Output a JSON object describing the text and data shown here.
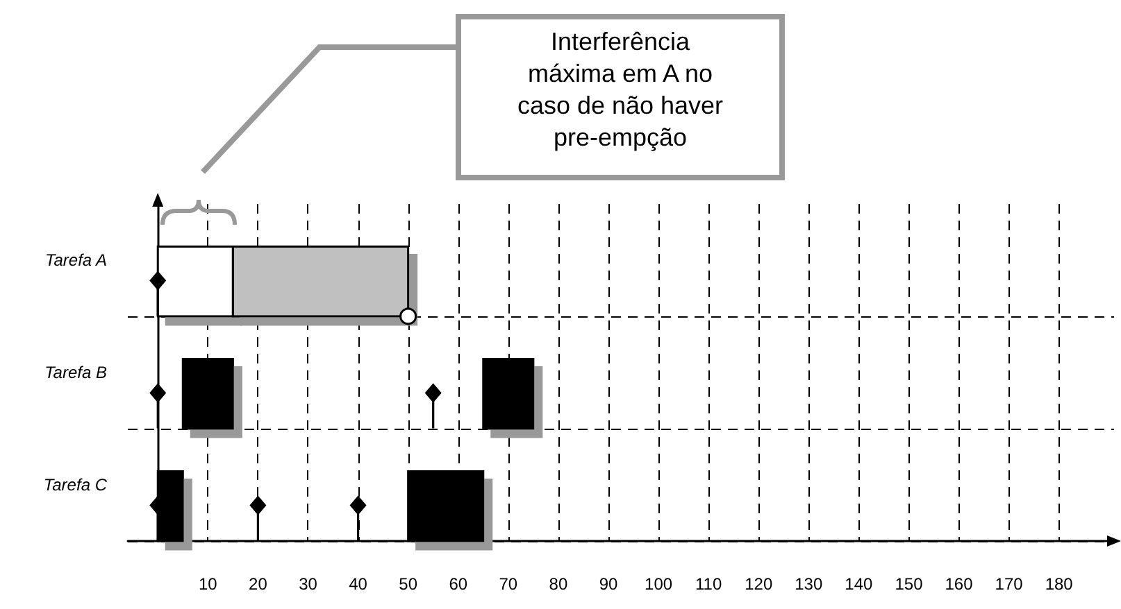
{
  "chart_data": {
    "type": "bar",
    "orientation": "horizontal",
    "categories": [
      "Tarefa A",
      "Tarefa B",
      "Tarefa C"
    ],
    "xlim": [
      -6,
      191
    ],
    "xticks": [
      10,
      20,
      30,
      40,
      50,
      60,
      70,
      80,
      90,
      100,
      110,
      120,
      130,
      140,
      150,
      160,
      170,
      180
    ],
    "grid": true,
    "annotations": [
      "Interferência máxima em A no caso de não haver pre-empção"
    ],
    "series": [
      {
        "color": "#ffffff",
        "values": [
          15,
          null,
          null
        ],
        "base": [
          0,
          null,
          null
        ]
      },
      {
        "color": "#c0c0c0",
        "values": [
          35,
          null,
          null
        ],
        "base": [
          15,
          null,
          null
        ]
      },
      {
        "color": "#000000",
        "values": [
          null,
          10,
          5
        ],
        "base": [
          null,
          5,
          0
        ]
      },
      {
        "color": "#000000",
        "values": [
          null,
          10,
          15
        ],
        "base": [
          null,
          65,
          50
        ]
      },
      {
        "type": "scatter",
        "marker": "diamond",
        "color": "#000000",
        "values": [
          0,
          0,
          0
        ]
      },
      {
        "type": "scatter",
        "marker": "diamond",
        "color": "#000000",
        "values": [
          null,
          55,
          20
        ]
      },
      {
        "type": "scatter",
        "marker": "diamond",
        "color": "#000000",
        "values": [
          null,
          null,
          40
        ]
      },
      {
        "type": "scatter",
        "marker": "circle",
        "color": "#ffffff",
        "values": [
          50,
          null,
          null
        ]
      }
    ]
  }
}
